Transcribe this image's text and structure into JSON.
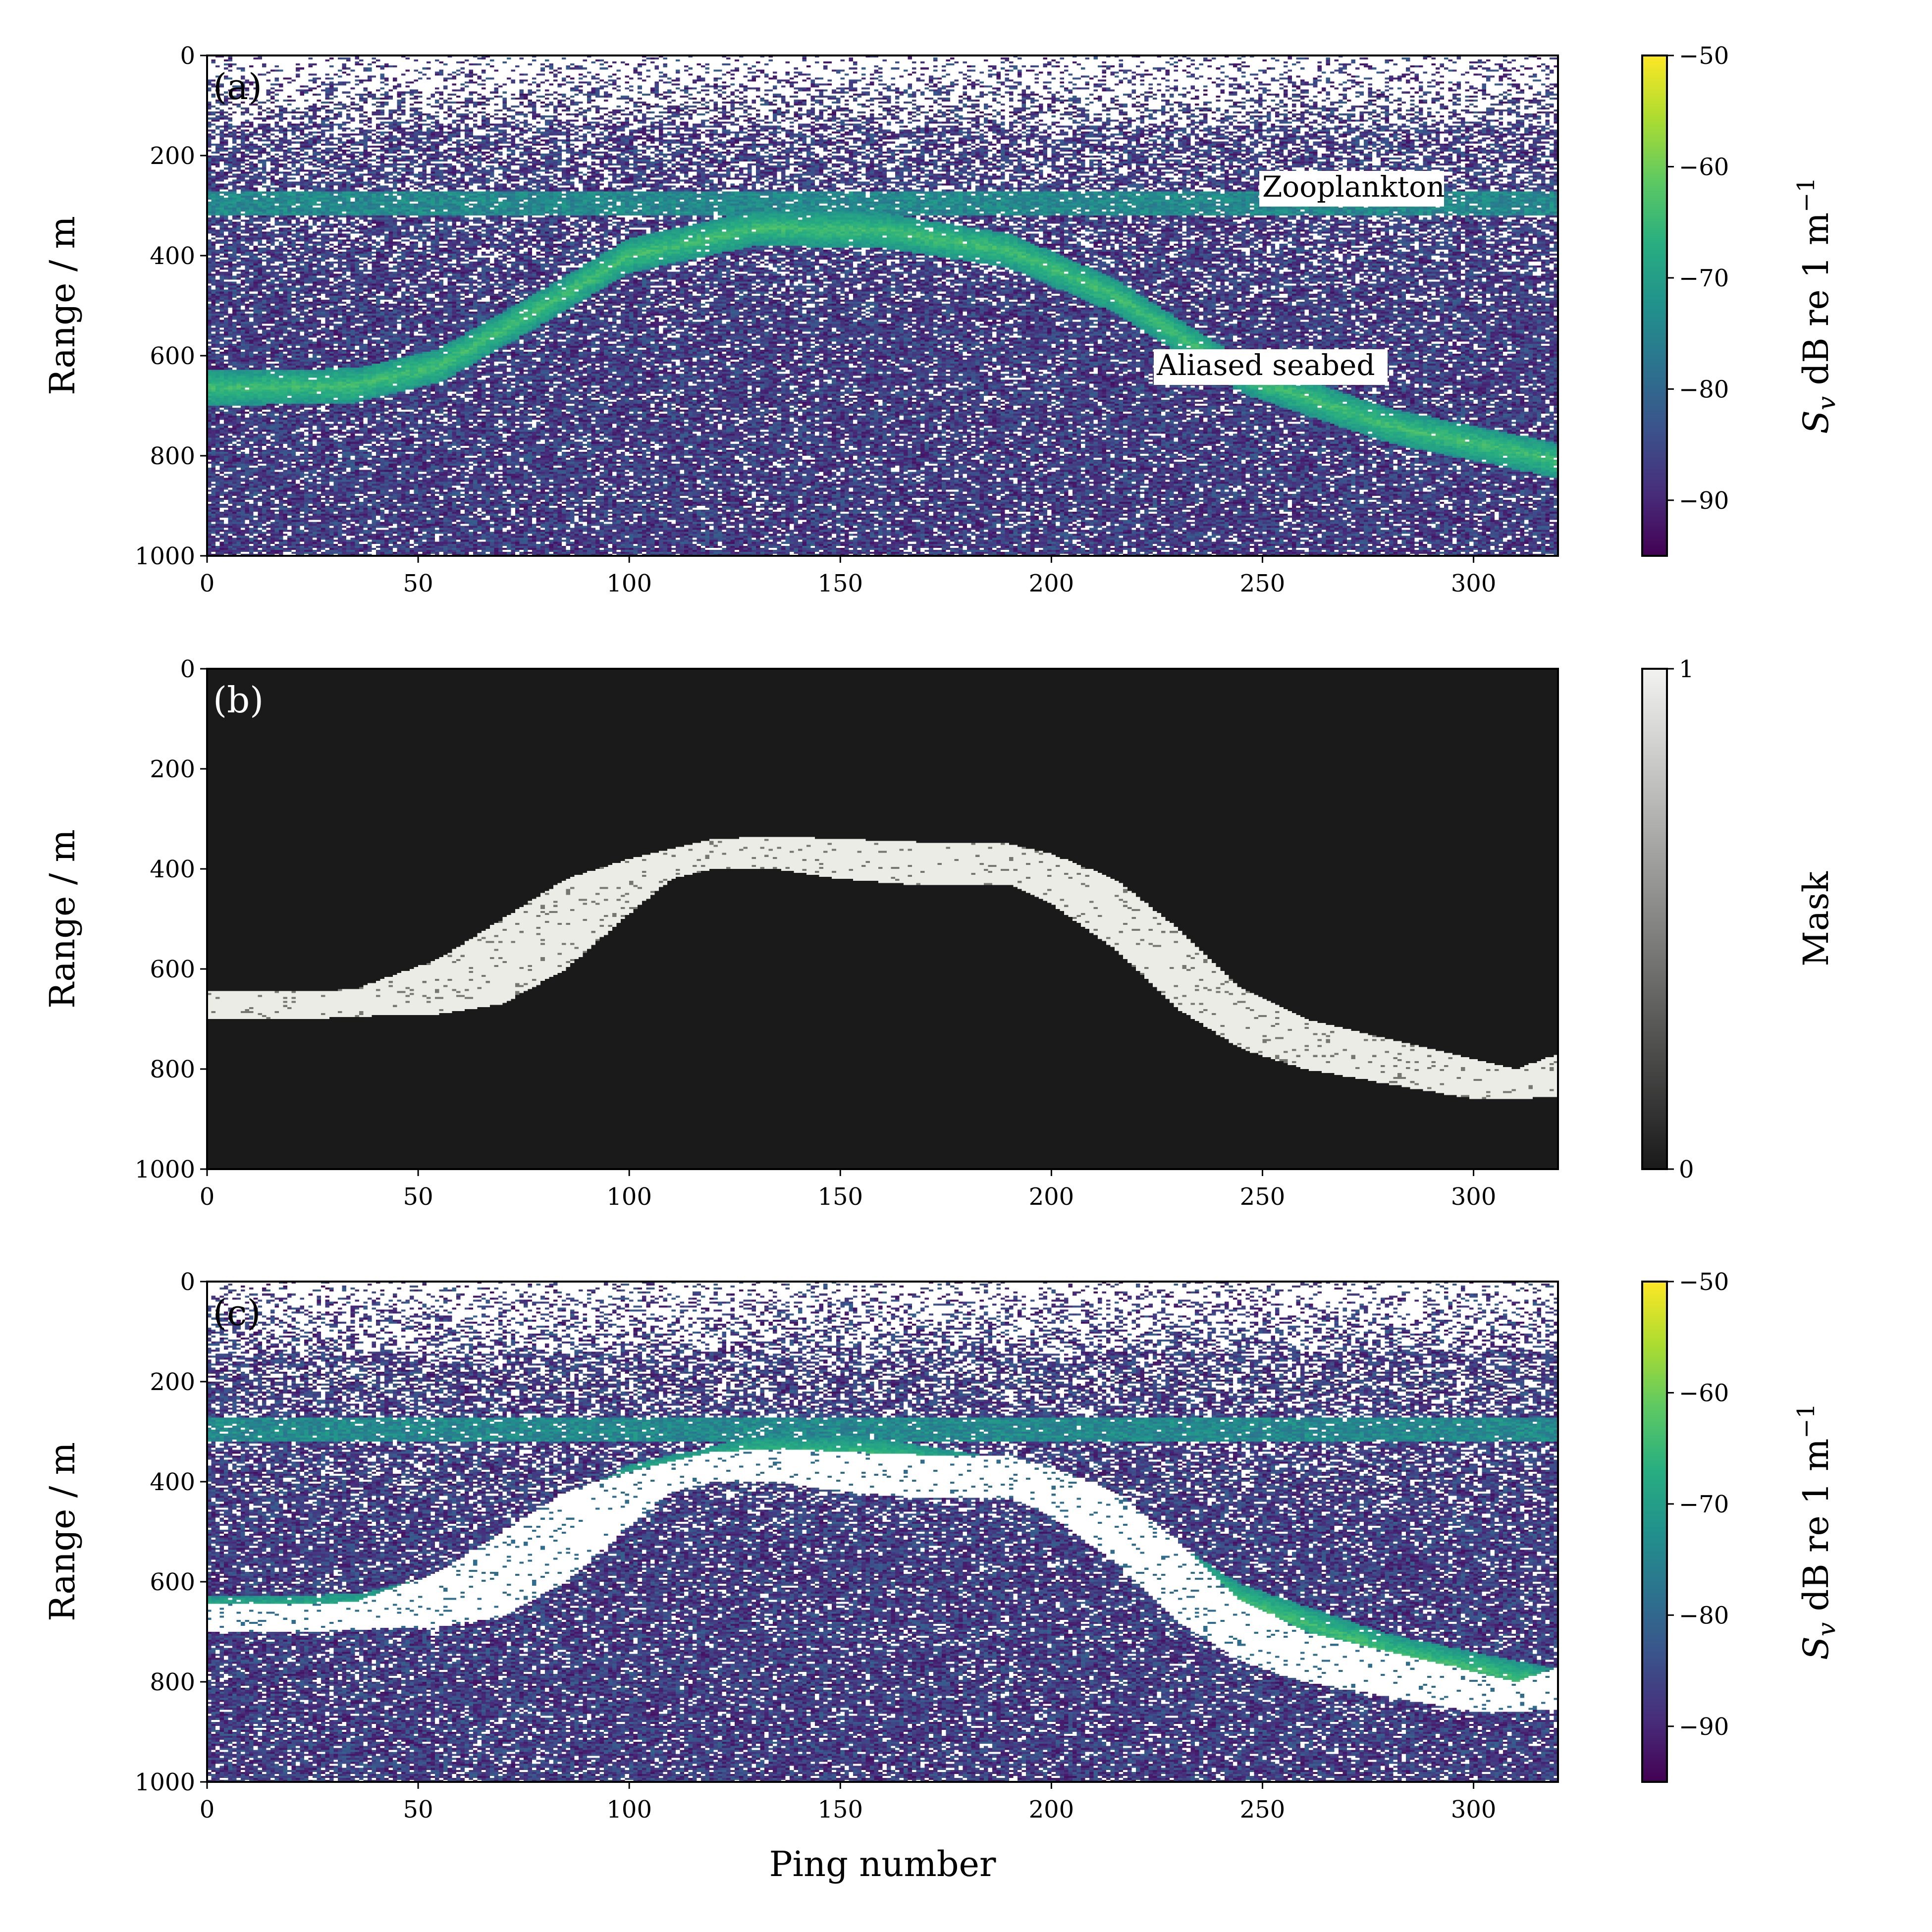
{
  "chart_data": [
    {
      "type": "heatmap",
      "panel_label": "(a)",
      "xlabel": "",
      "ylabel": "Range / m",
      "xlim": [
        0,
        320
      ],
      "ylim": [
        1000,
        0
      ],
      "xticks": [
        "0",
        "50",
        "100",
        "150",
        "200",
        "250",
        "300"
      ],
      "yticks": [
        "0",
        "200",
        "400",
        "600",
        "800",
        "1000"
      ],
      "colorbar": {
        "label": "S_v dB re 1 m^-1",
        "label_parts": {
          "s": "S",
          "sub": "v",
          "rest": " dB re 1 m",
          "sup": "−1"
        },
        "range": [
          -95,
          -50
        ],
        "ticks": [
          "−50",
          "−60",
          "−70",
          "−80",
          "−90"
        ],
        "colormap": "viridis"
      },
      "annotations": [
        "Zooplankton",
        "Aliased seabed"
      ],
      "features": {
        "zooplankton_layer_range_m": [
          270,
          320
        ],
        "surface_blank_range_m": [
          0,
          140
        ],
        "aliased_seabed_center_m": [
          [
            0,
            665
          ],
          [
            35,
            660
          ],
          [
            55,
            620
          ],
          [
            80,
            500
          ],
          [
            100,
            400
          ],
          [
            130,
            345
          ],
          [
            160,
            350
          ],
          [
            190,
            390
          ],
          [
            215,
            480
          ],
          [
            245,
            640
          ],
          [
            280,
            740
          ],
          [
            320,
            810
          ]
        ]
      }
    },
    {
      "type": "heatmap",
      "panel_label": "(b)",
      "xlabel": "",
      "ylabel": "Range / m",
      "xlim": [
        0,
        320
      ],
      "ylim": [
        1000,
        0
      ],
      "xticks": [
        "0",
        "50",
        "100",
        "150",
        "200",
        "250",
        "300"
      ],
      "yticks": [
        "0",
        "200",
        "400",
        "600",
        "800",
        "1000"
      ],
      "colorbar": {
        "label": "Mask",
        "range": [
          0,
          1
        ],
        "ticks": [
          "1",
          "0"
        ],
        "colormap": "gray"
      },
      "mask_band": {
        "x": [
          0,
          25,
          35,
          55,
          70,
          85,
          100,
          110,
          120,
          135,
          150,
          165,
          180,
          190,
          200,
          215,
          230,
          245,
          260,
          280,
          300,
          310,
          320
        ],
        "top": [
          645,
          645,
          640,
          580,
          500,
          420,
          380,
          360,
          340,
          335,
          340,
          345,
          350,
          350,
          370,
          420,
          520,
          640,
          700,
          740,
          780,
          800,
          770
        ],
        "bottom": [
          700,
          700,
          695,
          690,
          670,
          600,
          490,
          420,
          400,
          400,
          420,
          430,
          430,
          430,
          470,
          560,
          680,
          760,
          800,
          830,
          860,
          860,
          855
        ]
      }
    },
    {
      "type": "heatmap",
      "panel_label": "(c)",
      "xlabel": "Ping number",
      "ylabel": "Range / m",
      "xlim": [
        0,
        320
      ],
      "ylim": [
        1000,
        0
      ],
      "xticks": [
        "0",
        "50",
        "100",
        "150",
        "200",
        "250",
        "300"
      ],
      "yticks": [
        "0",
        "200",
        "400",
        "600",
        "800",
        "1000"
      ],
      "colorbar": {
        "label": "S_v dB re 1 m^-1",
        "label_parts": {
          "s": "S",
          "sub": "v",
          "rest": " dB re 1 m",
          "sup": "−1"
        },
        "range": [
          -95,
          -50
        ],
        "ticks": [
          "−50",
          "−60",
          "−70",
          "−80",
          "−90"
        ],
        "colormap": "viridis"
      },
      "features": {
        "zooplankton_layer_range_m": [
          270,
          320
        ],
        "surface_blank_range_m": [
          0,
          140
        ],
        "masked_region": "aliased seabed removed (white band)"
      }
    }
  ]
}
